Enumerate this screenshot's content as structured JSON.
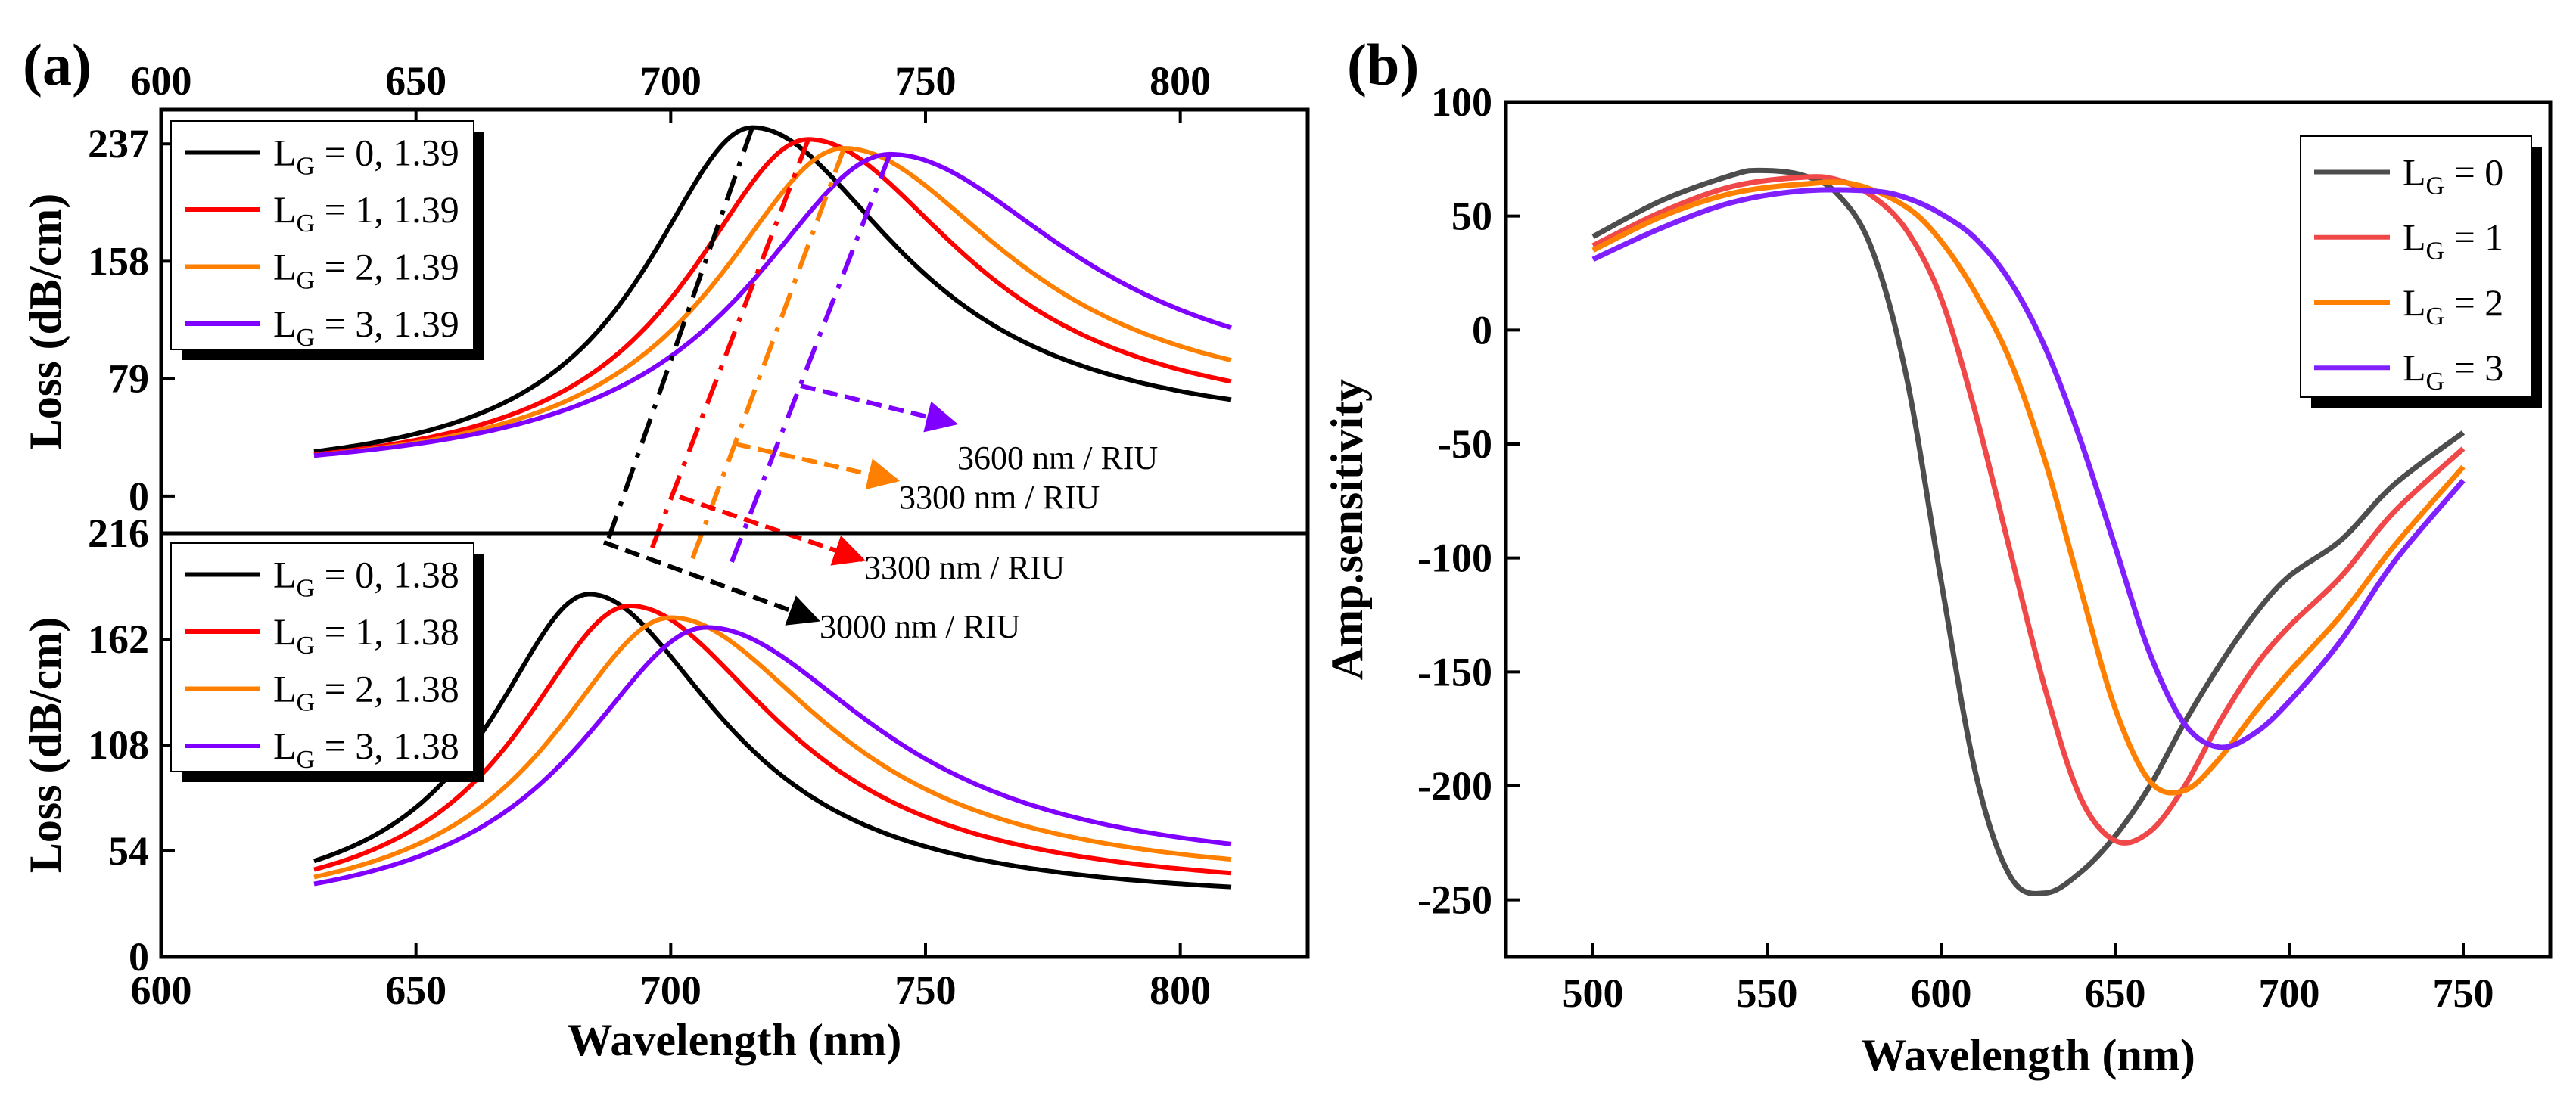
{
  "figure": {
    "panel_a_label": "(a)",
    "panel_b_label": "(b)"
  },
  "colors": {
    "LG0": "#000000",
    "LG1": "#ff0000",
    "LG2": "#ff8000",
    "LG3": "#8000ff",
    "b_LG0": "#4d4d4d",
    "b_LG1": "#f04848",
    "b_LG2": "#ff8000",
    "b_LG3": "#8020ff"
  },
  "chart_data": [
    {
      "panel": "a-top",
      "type": "line",
      "ylabel": "Loss (dB/cm)",
      "xlim": [
        600,
        825
      ],
      "ylim": [
        -25,
        260
      ],
      "x_ticks": [
        600,
        650,
        700,
        750,
        800
      ],
      "y_ticks": [
        0,
        79,
        158,
        237
      ],
      "xaxis_top": "600 650 700 750 800",
      "legend": [
        {
          "main": "L",
          "sub": "G",
          "rest": " = 0, 1.39",
          "color": "#000000"
        },
        {
          "main": "L",
          "sub": "G",
          "rest": " = 1, 1.39",
          "color": "#ff0000"
        },
        {
          "main": "L",
          "sub": "G",
          "rest": " = 2, 1.39",
          "color": "#ff8000"
        },
        {
          "main": "L",
          "sub": "G",
          "rest": " = 3, 1.39",
          "color": "#8000ff"
        }
      ],
      "series": [
        {
          "name": "LG = 0, 1.39",
          "color": "#000000",
          "peak_x": 716,
          "peak_y": 248,
          "base": 10,
          "tail": 38,
          "w_left": 26,
          "w_right": 36
        },
        {
          "name": "LG = 1, 1.39",
          "color": "#ff0000",
          "peak_x": 727,
          "peak_y": 240,
          "base": 9,
          "tail": 43,
          "w_left": 29,
          "w_right": 38
        },
        {
          "name": "LG = 2, 1.39",
          "color": "#ff8000",
          "peak_x": 734,
          "peak_y": 234,
          "base": 9,
          "tail": 52,
          "w_left": 31,
          "w_right": 40
        },
        {
          "name": "LG = 3, 1.39",
          "color": "#8000ff",
          "peak_x": 743,
          "peak_y": 230,
          "base": 9,
          "tail": 63,
          "w_left": 34,
          "w_right": 44
        }
      ]
    },
    {
      "panel": "a-bottom",
      "type": "line",
      "xlabel": "Wavelength (nm)",
      "ylabel": "Loss (dB/cm)",
      "xlim": [
        600,
        825
      ],
      "ylim": [
        0,
        216
      ],
      "x_ticks": [
        600,
        650,
        700,
        750,
        800
      ],
      "y_ticks": [
        0,
        54,
        108,
        162,
        216
      ],
      "legend": [
        {
          "main": "L",
          "sub": "G",
          "rest": " = 0, 1.38",
          "color": "#000000"
        },
        {
          "main": "L",
          "sub": "G",
          "rest": " = 1, 1.38",
          "color": "#ff0000"
        },
        {
          "main": "L",
          "sub": "G",
          "rest": " = 2, 1.38",
          "color": "#ff8000"
        },
        {
          "main": "L",
          "sub": "G",
          "rest": " = 3, 1.38",
          "color": "#8000ff"
        }
      ],
      "series": [
        {
          "name": "LG = 0, 1.38",
          "color": "#000000",
          "peak_x": 684,
          "peak_y": 185,
          "base": 22,
          "tail": 26,
          "w_left": 24,
          "w_right": 32
        },
        {
          "name": "LG = 1, 1.38",
          "color": "#ff0000",
          "peak_x": 692,
          "peak_y": 179,
          "base": 19,
          "tail": 30,
          "w_left": 27,
          "w_right": 36
        },
        {
          "name": "LG = 2, 1.38",
          "color": "#ff8000",
          "peak_x": 700,
          "peak_y": 173,
          "base": 18,
          "tail": 35,
          "w_left": 29,
          "w_right": 38
        },
        {
          "name": "LG = 3, 1.38",
          "color": "#8000ff",
          "peak_x": 707,
          "peak_y": 168,
          "base": 16,
          "tail": 40,
          "w_left": 31,
          "w_right": 41
        }
      ],
      "annotations": [
        {
          "text": "3600 nm / RIU",
          "color": "#8000ff"
        },
        {
          "text": "3300 nm / RIU",
          "color": "#ff8000"
        },
        {
          "text": "3300 nm / RIU",
          "color": "#ff0000"
        },
        {
          "text": "3000 nm / RIU",
          "color": "#000000"
        }
      ]
    },
    {
      "panel": "b",
      "type": "line",
      "xlabel": "Wavelength (nm)",
      "ylabel": "Amp.sensitivity",
      "xlim": [
        475,
        775
      ],
      "ylim": [
        -275,
        100
      ],
      "x_ticks": [
        500,
        550,
        600,
        650,
        700,
        750
      ],
      "y_ticks": [
        100,
        50,
        0,
        -50,
        -100,
        -150,
        -200,
        -250
      ],
      "legend": [
        {
          "main": "L",
          "sub": "G",
          "rest": " = 0",
          "color": "#4d4d4d"
        },
        {
          "main": "L",
          "sub": "G",
          "rest": " = 1",
          "color": "#f04848"
        },
        {
          "main": "L",
          "sub": "G",
          "rest": " = 2",
          "color": "#ff8000"
        },
        {
          "main": "L",
          "sub": "G",
          "rest": " = 3",
          "color": "#8020ff"
        }
      ],
      "series": [
        {
          "name": "LG = 0",
          "color": "#4d4d4d",
          "x": [
            500,
            520,
            540,
            548,
            560,
            570,
            580,
            590,
            600,
            610,
            620,
            630,
            640,
            650,
            660,
            670,
            680,
            690,
            700,
            715,
            730,
            750
          ],
          "y": [
            41,
            57,
            68,
            70,
            68,
            60,
            36,
            -20,
            -110,
            -195,
            -240,
            -247,
            -238,
            -222,
            -200,
            -172,
            -147,
            -125,
            -108,
            -92,
            -68,
            -45
          ]
        },
        {
          "name": "LG = 1",
          "color": "#f04848",
          "x": [
            500,
            520,
            540,
            560,
            570,
            580,
            590,
            600,
            610,
            620,
            630,
            640,
            650,
            660,
            670,
            680,
            690,
            700,
            715,
            730,
            750
          ],
          "y": [
            37,
            52,
            63,
            67,
            66,
            59,
            44,
            14,
            -37,
            -98,
            -158,
            -205,
            -224,
            -220,
            -200,
            -172,
            -148,
            -130,
            -108,
            -80,
            -52
          ]
        },
        {
          "name": "LG = 2",
          "color": "#ff8000",
          "x": [
            500,
            520,
            540,
            560,
            575,
            590,
            600,
            610,
            620,
            630,
            640,
            650,
            660,
            670,
            680,
            690,
            700,
            715,
            730,
            750
          ],
          "y": [
            35,
            50,
            60,
            64,
            64,
            54,
            39,
            16,
            -14,
            -58,
            -113,
            -166,
            -198,
            -202,
            -188,
            -168,
            -150,
            -125,
            -95,
            -60
          ]
        },
        {
          "name": "LG = 3",
          "color": "#8020ff",
          "x": [
            500,
            520,
            540,
            560,
            580,
            590,
            600,
            610,
            620,
            630,
            640,
            650,
            660,
            670,
            680,
            690,
            700,
            715,
            730,
            750
          ],
          "y": [
            31,
            45,
            56,
            61,
            61,
            58,
            51,
            40,
            21,
            -8,
            -48,
            -95,
            -142,
            -173,
            -183,
            -177,
            -163,
            -136,
            -102,
            -66
          ]
        }
      ]
    }
  ]
}
